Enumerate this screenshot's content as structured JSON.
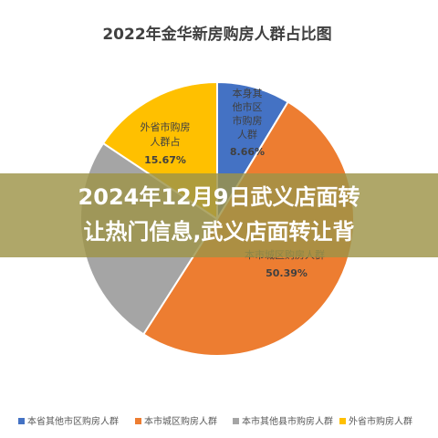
{
  "chart_data": {
    "type": "pie",
    "title": "2022年金华新房购房人群占比图",
    "categories": [
      "本省其他市区购房人群",
      "本市城区购房人群",
      "本市其他县市购房人群",
      "外省市购房人群"
    ],
    "values": [
      8.66,
      50.39,
      25.28,
      15.67
    ],
    "value_labels": [
      "8.66%",
      "50.39%",
      null,
      "15.67%"
    ],
    "slice_labels": [
      [
        "本身其",
        "他市区",
        "市购房",
        "人群"
      ],
      [
        "本市城区购房人群"
      ],
      null,
      [
        "外省市购房",
        "人群占"
      ]
    ],
    "colors": [
      "#4472c4",
      "#ed7d31",
      "#a5a5a5",
      "#ffc000"
    ]
  },
  "banner": {
    "lines": [
      "2024年12月9日武义店面转",
      "让热门信息,武义店面转让背"
    ]
  }
}
